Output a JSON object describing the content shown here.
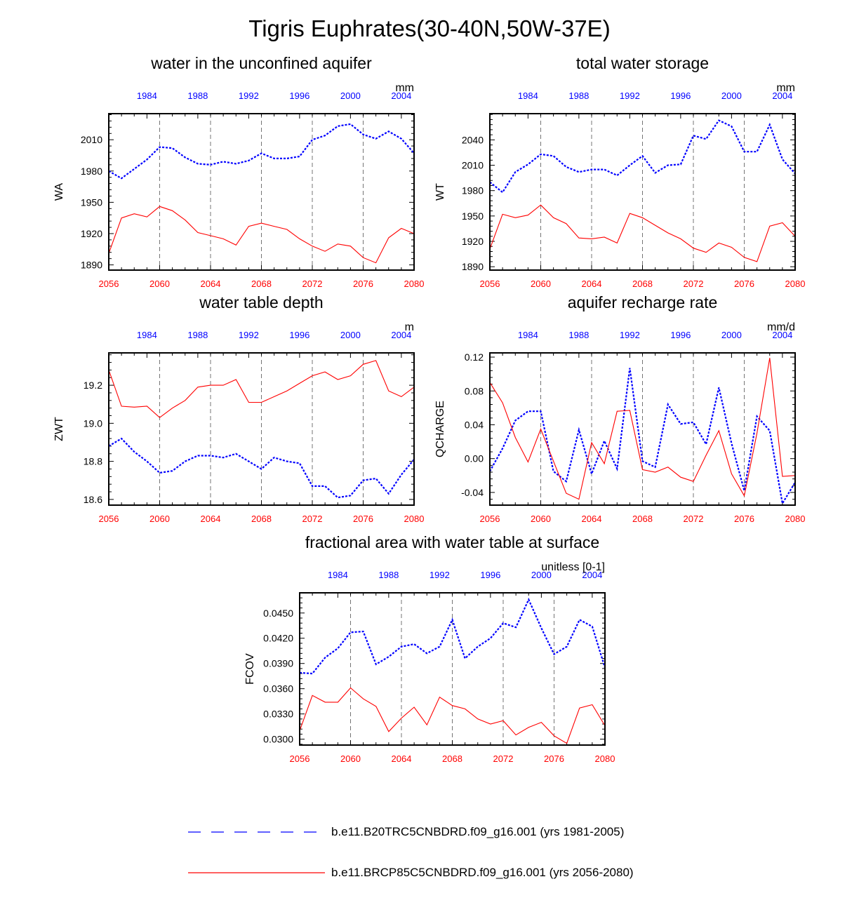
{
  "figure_title": "Tigris Euphrates(30-40N,50W-37E)",
  "colors": {
    "historical": "#0000ff",
    "future": "#ff0000",
    "axis": "#000000",
    "grid": "#666666"
  },
  "chart_data": [
    {
      "type": "line",
      "title": "water in the unconfined aquifer",
      "ylabel": "WA",
      "units": "mm",
      "ylim": [
        1885,
        2035
      ],
      "yticks": [
        1890,
        1920,
        1950,
        1980,
        2010
      ],
      "ytick_labels": [
        "1890",
        "1920",
        "1950",
        "1980",
        "2010"
      ],
      "x_bottom": {
        "range": [
          2056,
          2080
        ],
        "ticks": [
          "2056",
          "2060",
          "2064",
          "2068",
          "2072",
          "2076",
          "2080"
        ]
      },
      "x_top": {
        "range": [
          1981,
          2005
        ],
        "ticks": [
          "1984",
          "1988",
          "1992",
          "1996",
          "2000",
          "2004"
        ]
      },
      "series": [
        {
          "name": "b.e11.B20TRC5CNBDRD.f09_g16.001 (yrs 1981-2005)",
          "axis": "top",
          "style": "dashed",
          "x": [
            1981,
            1982,
            1983,
            1984,
            1985,
            1986,
            1987,
            1988,
            1989,
            1990,
            1991,
            1992,
            1993,
            1994,
            1995,
            1996,
            1997,
            1998,
            1999,
            2000,
            2001,
            2002,
            2003,
            2004,
            2005
          ],
          "values": [
            1980,
            1973,
            1982,
            1991,
            2003,
            2002,
            1993,
            1987,
            1986,
            1989,
            1987,
            1990,
            1997,
            1992,
            1992,
            1994,
            2010,
            2014,
            2023,
            2025,
            2015,
            2011,
            2018,
            2011,
            1997
          ]
        },
        {
          "name": "b.e11.BRCP85C5CNBDRD.f09_g16.001 (yrs 2056-2080)",
          "axis": "bottom",
          "style": "solid",
          "x": [
            2056,
            2057,
            2058,
            2059,
            2060,
            2061,
            2062,
            2063,
            2064,
            2065,
            2066,
            2067,
            2068,
            2069,
            2070,
            2071,
            2072,
            2073,
            2074,
            2075,
            2076,
            2077,
            2078,
            2079,
            2080
          ],
          "values": [
            1901,
            1935,
            1939,
            1936,
            1946,
            1942,
            1933,
            1921,
            1918,
            1915,
            1909,
            1927,
            1930,
            1927,
            1924,
            1915,
            1908,
            1903,
            1910,
            1908,
            1897,
            1892,
            1916,
            1925,
            1920
          ]
        }
      ]
    },
    {
      "type": "line",
      "title": "total water storage",
      "ylabel": "WT",
      "units": "mm",
      "ylim": [
        1886,
        2071
      ],
      "yticks": [
        1890,
        1920,
        1950,
        1980,
        2010,
        2040
      ],
      "ytick_labels": [
        "1890",
        "1920",
        "1950",
        "1980",
        "2010",
        "2040"
      ],
      "x_bottom": {
        "range": [
          2056,
          2080
        ],
        "ticks": [
          "2056",
          "2060",
          "2064",
          "2068",
          "2072",
          "2076",
          "2080"
        ]
      },
      "x_top": {
        "range": [
          1981,
          2005
        ],
        "ticks": [
          "1984",
          "1988",
          "1992",
          "1996",
          "2000",
          "2004"
        ]
      },
      "series": [
        {
          "name": "b.e11.B20TRC5CNBDRD.f09_g16.001 (yrs 1981-2005)",
          "axis": "top",
          "style": "dashed",
          "x": [
            1981,
            1982,
            1983,
            1984,
            1985,
            1986,
            1987,
            1988,
            1989,
            1990,
            1991,
            1992,
            1993,
            1994,
            1995,
            1996,
            1997,
            1998,
            1999,
            2000,
            2001,
            2002,
            2003,
            2004,
            2005
          ],
          "values": [
            1990,
            1978,
            2002,
            2011,
            2023,
            2021,
            2008,
            2002,
            2005,
            2005,
            1998,
            2010,
            2021,
            2001,
            2010,
            2011,
            2045,
            2041,
            2063,
            2056,
            2026,
            2026,
            2058,
            2017,
            2000
          ]
        },
        {
          "name": "b.e11.BRCP85C5CNBDRD.f09_g16.001 (yrs 2056-2080)",
          "axis": "bottom",
          "style": "solid",
          "x": [
            2056,
            2057,
            2058,
            2059,
            2060,
            2061,
            2062,
            2063,
            2064,
            2065,
            2066,
            2067,
            2068,
            2069,
            2070,
            2071,
            2072,
            2073,
            2074,
            2075,
            2076,
            2077,
            2078,
            2079,
            2080
          ],
          "values": [
            1911,
            1952,
            1948,
            1951,
            1963,
            1948,
            1941,
            1924,
            1923,
            1925,
            1918,
            1953,
            1948,
            1939,
            1930,
            1923,
            1912,
            1907,
            1918,
            1913,
            1901,
            1896,
            1938,
            1942,
            1926
          ]
        }
      ]
    },
    {
      "type": "line",
      "title": "water table depth",
      "ylabel": "ZWT",
      "units": "m",
      "ylim": [
        18.57,
        19.37
      ],
      "yticks": [
        18.6,
        18.8,
        19.0,
        19.2
      ],
      "ytick_labels": [
        "18.6",
        "18.8",
        "19.0",
        "19.2"
      ],
      "x_bottom": {
        "range": [
          2056,
          2080
        ],
        "ticks": [
          "2056",
          "2060",
          "2064",
          "2068",
          "2072",
          "2076",
          "2080"
        ]
      },
      "x_top": {
        "range": [
          1981,
          2005
        ],
        "ticks": [
          "1984",
          "1988",
          "1992",
          "1996",
          "2000",
          "2004"
        ]
      },
      "series": [
        {
          "name": "b.e11.B20TRC5CNBDRD.f09_g16.001 (yrs 1981-2005)",
          "axis": "top",
          "style": "dashed",
          "x": [
            1981,
            1982,
            1983,
            1984,
            1985,
            1986,
            1987,
            1988,
            1989,
            1990,
            1991,
            1992,
            1993,
            1994,
            1995,
            1996,
            1997,
            1998,
            1999,
            2000,
            2001,
            2002,
            2003,
            2004,
            2005
          ],
          "values": [
            18.88,
            18.92,
            18.85,
            18.8,
            18.74,
            18.75,
            18.8,
            18.83,
            18.83,
            18.82,
            18.84,
            18.8,
            18.76,
            18.82,
            18.8,
            18.79,
            18.67,
            18.67,
            18.61,
            18.62,
            18.7,
            18.71,
            18.63,
            18.73,
            18.81
          ]
        },
        {
          "name": "b.e11.BRCP85C5CNBDRD.f09_g16.001 (yrs 2056-2080)",
          "axis": "bottom",
          "style": "solid",
          "x": [
            2056,
            2057,
            2058,
            2059,
            2060,
            2061,
            2062,
            2063,
            2064,
            2065,
            2066,
            2067,
            2068,
            2069,
            2070,
            2071,
            2072,
            2073,
            2074,
            2075,
            2076,
            2077,
            2078,
            2079,
            2080
          ],
          "values": [
            19.28,
            19.09,
            19.085,
            19.09,
            19.03,
            19.08,
            19.12,
            19.19,
            19.2,
            19.2,
            19.23,
            19.11,
            19.11,
            19.14,
            19.17,
            19.21,
            19.25,
            19.27,
            19.23,
            19.25,
            19.31,
            19.33,
            19.17,
            19.14,
            19.19
          ]
        }
      ]
    },
    {
      "type": "line",
      "title": "aquifer recharge rate",
      "ylabel": "QCHARGE",
      "units": "mm/d",
      "ylim": [
        -0.055,
        0.125
      ],
      "yticks": [
        -0.04,
        0.0,
        0.04,
        0.08,
        0.12
      ],
      "ytick_labels": [
        "-0.04",
        "0.00",
        "0.04",
        "0.08",
        "0.12"
      ],
      "x_bottom": {
        "range": [
          2056,
          2080
        ],
        "ticks": [
          "2056",
          "2060",
          "2064",
          "2068",
          "2072",
          "2076",
          "2080"
        ]
      },
      "x_top": {
        "range": [
          1981,
          2005
        ],
        "ticks": [
          "1984",
          "1988",
          "1992",
          "1996",
          "2000",
          "2004"
        ]
      },
      "series": [
        {
          "name": "b.e11.B20TRC5CNBDRD.f09_g16.001 (yrs 1981-2005)",
          "axis": "top",
          "style": "dashed",
          "x": [
            1981,
            1982,
            1983,
            1984,
            1985,
            1986,
            1987,
            1988,
            1989,
            1990,
            1991,
            1992,
            1993,
            1994,
            1995,
            1996,
            1997,
            1998,
            1999,
            2000,
            2001,
            2002,
            2003,
            2004,
            2005
          ],
          "values": [
            -0.015,
            0.012,
            0.045,
            0.056,
            0.056,
            -0.015,
            -0.027,
            0.034,
            -0.018,
            0.021,
            -0.012,
            0.107,
            -0.003,
            -0.01,
            0.064,
            0.041,
            0.043,
            0.017,
            0.084,
            0.018,
            -0.038,
            0.05,
            0.033,
            -0.053,
            -0.028
          ]
        },
        {
          "name": "b.e11.BRCP85C5CNBDRD.f09_g16.001 (yrs 2056-2080)",
          "axis": "bottom",
          "style": "solid",
          "x": [
            2056,
            2057,
            2058,
            2059,
            2060,
            2061,
            2062,
            2063,
            2064,
            2065,
            2066,
            2067,
            2068,
            2069,
            2070,
            2071,
            2072,
            2073,
            2074,
            2075,
            2076,
            2077,
            2078,
            2079,
            2080
          ],
          "values": [
            0.09,
            0.066,
            0.025,
            -0.004,
            0.035,
            -0.003,
            -0.041,
            -0.048,
            0.019,
            -0.006,
            0.056,
            0.057,
            -0.013,
            -0.016,
            -0.01,
            -0.022,
            -0.027,
            0.004,
            0.033,
            -0.018,
            -0.044,
            0.03,
            0.119,
            -0.021,
            -0.02
          ]
        }
      ]
    },
    {
      "type": "line",
      "title": "fractional area with water table at surface",
      "ylabel": "FCOV",
      "units": "unitless [0-1]",
      "ylim": [
        0.0293,
        0.0474
      ],
      "yticks": [
        0.03,
        0.033,
        0.036,
        0.039,
        0.042,
        0.045
      ],
      "ytick_labels": [
        "0.0300",
        "0.0330",
        "0.0360",
        "0.0390",
        "0.0420",
        "0.0450"
      ],
      "x_bottom": {
        "range": [
          2056,
          2080
        ],
        "ticks": [
          "2056",
          "2060",
          "2064",
          "2068",
          "2072",
          "2076",
          "2080"
        ]
      },
      "x_top": {
        "range": [
          1981,
          2005
        ],
        "ticks": [
          "1984",
          "1988",
          "1992",
          "1996",
          "2000",
          "2004"
        ]
      },
      "series": [
        {
          "name": "b.e11.B20TRC5CNBDRD.f09_g16.001 (yrs 1981-2005)",
          "axis": "top",
          "style": "dashed",
          "x": [
            1981,
            1982,
            1983,
            1984,
            1985,
            1986,
            1987,
            1988,
            1989,
            1990,
            1991,
            1992,
            1993,
            1994,
            1995,
            1996,
            1997,
            1998,
            1999,
            2000,
            2001,
            2002,
            2003,
            2004,
            2005
          ],
          "values": [
            0.0379,
            0.0378,
            0.0397,
            0.0408,
            0.0427,
            0.0428,
            0.0389,
            0.0398,
            0.041,
            0.0413,
            0.0402,
            0.041,
            0.0442,
            0.0396,
            0.041,
            0.042,
            0.0438,
            0.0433,
            0.0466,
            0.0432,
            0.0401,
            0.041,
            0.0442,
            0.0434,
            0.0385
          ]
        },
        {
          "name": "b.e11.BRCP85C5CNBDRD.f09_g16.001 (yrs 2056-2080)",
          "axis": "bottom",
          "style": "solid",
          "x": [
            2056,
            2057,
            2058,
            2059,
            2060,
            2061,
            2062,
            2063,
            2064,
            2065,
            2066,
            2067,
            2068,
            2069,
            2070,
            2071,
            2072,
            2073,
            2074,
            2075,
            2076,
            2077,
            2078,
            2079,
            2080
          ],
          "values": [
            0.031,
            0.0352,
            0.0344,
            0.0344,
            0.0361,
            0.0348,
            0.0339,
            0.0309,
            0.0325,
            0.0338,
            0.0317,
            0.035,
            0.034,
            0.0336,
            0.0324,
            0.0318,
            0.0322,
            0.0305,
            0.0314,
            0.032,
            0.0304,
            0.0295,
            0.0337,
            0.0341,
            0.0316
          ]
        }
      ]
    }
  ],
  "legend": {
    "items": [
      {
        "label": "b.e11.B20TRC5CNBDRD.f09_g16.001 (yrs 1981-2005)",
        "style": "dashed",
        "color": "#0000ff"
      },
      {
        "label": "b.e11.BRCP85C5CNBDRD.f09_g16.001 (yrs 2056-2080)",
        "style": "solid",
        "color": "#ff0000"
      }
    ]
  }
}
